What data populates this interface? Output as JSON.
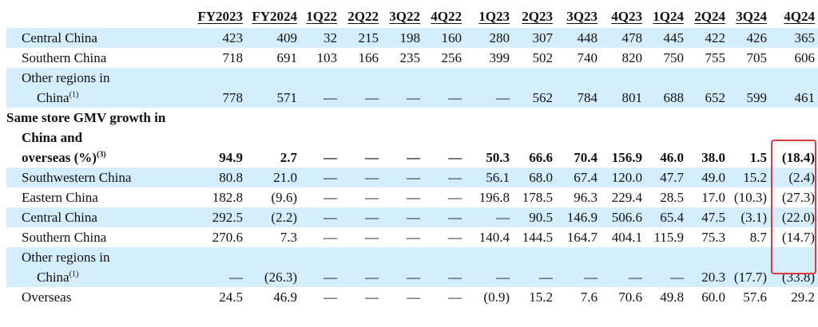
{
  "table": {
    "columns": [
      "FY2023",
      "FY2024",
      "1Q22",
      "2Q22",
      "3Q22",
      "4Q22",
      "1Q23",
      "2Q23",
      "3Q23",
      "4Q23",
      "1Q24",
      "2Q24",
      "3Q24",
      "4Q24"
    ],
    "rows": [
      {
        "label": [
          "Central China"
        ],
        "shaded": true,
        "values": [
          "423",
          "409",
          "32",
          "215",
          "198",
          "160",
          "280",
          "307",
          "448",
          "478",
          "445",
          "422",
          "426",
          "365"
        ]
      },
      {
        "label": [
          "Southern China"
        ],
        "values": [
          "718",
          "691",
          "103",
          "166",
          "235",
          "256",
          "399",
          "502",
          "740",
          "820",
          "750",
          "755",
          "705",
          "606"
        ]
      },
      {
        "label": [
          "Other regions in",
          "China"
        ],
        "note": "(1)",
        "shaded": true,
        "values": [
          "778",
          "571",
          "—",
          "—",
          "—",
          "—",
          "—",
          "562",
          "784",
          "801",
          "688",
          "652",
          "599",
          "461"
        ]
      },
      {
        "label": [
          "Same store GMV growth in",
          "China and",
          "overseas (%)"
        ],
        "note": "(3)",
        "bold": true,
        "values": [
          "94.9",
          "2.7",
          "—",
          "—",
          "—",
          "—",
          "50.3",
          "66.6",
          "70.4",
          "156.9",
          "46.0",
          "38.0",
          "1.5",
          "(18.4)"
        ]
      },
      {
        "label": [
          "Southwestern China"
        ],
        "shaded": true,
        "values": [
          "80.8",
          "21.0",
          "—",
          "—",
          "—",
          "—",
          "56.1",
          "68.0",
          "67.4",
          "120.0",
          "47.7",
          "49.0",
          "15.2",
          "(2.4)"
        ]
      },
      {
        "label": [
          "Eastern China"
        ],
        "values": [
          "182.8",
          "(9.6)",
          "—",
          "—",
          "—",
          "—",
          "196.8",
          "178.5",
          "96.3",
          "229.4",
          "28.5",
          "17.0",
          "(10.3)",
          "(27.3)"
        ]
      },
      {
        "label": [
          "Central China"
        ],
        "shaded": true,
        "values": [
          "292.5",
          "(2.2)",
          "—",
          "—",
          "—",
          "—",
          "—",
          "90.5",
          "146.9",
          "506.6",
          "65.4",
          "47.5",
          "(3.1)",
          "(22.0)"
        ]
      },
      {
        "label": [
          "Southern China"
        ],
        "values": [
          "270.6",
          "7.3",
          "—",
          "—",
          "—",
          "—",
          "140.4",
          "144.5",
          "164.7",
          "404.1",
          "115.9",
          "75.3",
          "8.7",
          "(14.7)"
        ]
      },
      {
        "label": [
          "Other regions in",
          "China"
        ],
        "note": "(1)",
        "shaded": true,
        "values": [
          "—",
          "(26.3)",
          "—",
          "—",
          "—",
          "—",
          "—",
          "—",
          "—",
          "—",
          "—",
          "20.3",
          "(17.7)",
          "(33.8)"
        ]
      },
      {
        "label": [
          "Overseas"
        ],
        "values": [
          "24.5",
          "46.9",
          "—",
          "—",
          "—",
          "—",
          "(0.9)",
          "15.2",
          "7.6",
          "70.6",
          "49.8",
          "60.0",
          "57.6",
          "29.2"
        ]
      }
    ]
  }
}
